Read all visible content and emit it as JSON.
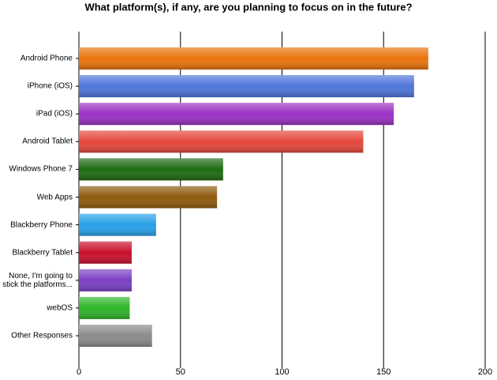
{
  "chart_data": {
    "type": "barh",
    "title": "What platform(s), if any, are you planning to focus on in the future?",
    "categories": [
      "Android Phone",
      "iPhone (iOS)",
      "iPad (iOS)",
      "Android Tablet",
      "Windows Phone 7",
      "Web Apps",
      "Blackberry Phone",
      "Blackberry Tablet",
      "None, I'm going to stick the platforms...",
      "webOS",
      "Other Responses"
    ],
    "values": [
      172,
      165,
      155,
      140,
      71,
      68,
      38,
      26,
      26,
      25,
      36
    ],
    "colors": [
      "#e8730c",
      "#4f74d9",
      "#9b30c4",
      "#e5473b",
      "#1f6b12",
      "#8e5a0d",
      "#27a0e8",
      "#c9102c",
      "#7a3fc4",
      "#2fb52a",
      "#8a8a8a"
    ],
    "xlim": [
      0,
      200
    ],
    "xticks": [
      0,
      50,
      100,
      150,
      200
    ],
    "grid": true
  }
}
